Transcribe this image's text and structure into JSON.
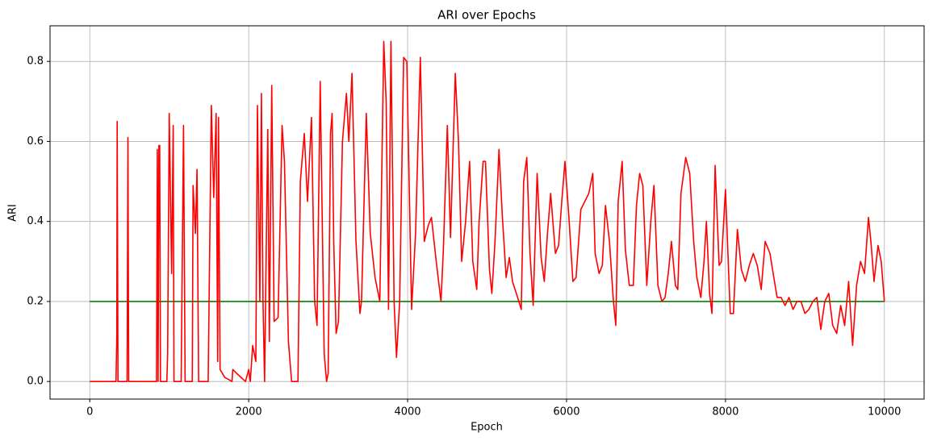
{
  "chart_data": {
    "type": "line",
    "title": "ARI over Epochs",
    "xlabel": "Epoch",
    "ylabel": "ARI",
    "xlim": [
      -500,
      10500
    ],
    "ylim": [
      -0.044,
      0.889
    ],
    "xticks": [
      0,
      2000,
      4000,
      6000,
      8000,
      10000
    ],
    "yticks": [
      {
        "value": 0,
        "label": "0.0"
      },
      0.2,
      0.4,
      0.6,
      0.8
    ],
    "grid": true,
    "series": [
      {
        "color": "#008000",
        "x": [
          0,
          10000
        ],
        "values": [
          0.2,
          0.2
        ]
      },
      {
        "color": "#ff0000",
        "x": [
          0,
          330,
          340,
          345,
          355,
          470,
          480,
          490,
          840,
          850,
          860,
          870,
          880,
          890,
          970,
          980,
          1000,
          1030,
          1050,
          1060,
          1150,
          1180,
          1200,
          1290,
          1300,
          1330,
          1350,
          1370,
          1490,
          1530,
          1560,
          1590,
          1610,
          1620,
          1640,
          1700,
          1790,
          1800,
          1850,
          1960,
          2000,
          2020,
          2050,
          2090,
          2110,
          2140,
          2160,
          2180,
          2200,
          2240,
          2260,
          2290,
          2320,
          2370,
          2420,
          2450,
          2500,
          2540,
          2620,
          2650,
          2700,
          2740,
          2790,
          2830,
          2860,
          2900,
          2950,
          2980,
          3000,
          3030,
          3050,
          3070,
          3100,
          3130,
          3180,
          3230,
          3260,
          3300,
          3350,
          3400,
          3420,
          3480,
          3530,
          3590,
          3650,
          3700,
          3730,
          3760,
          3790,
          3830,
          3860,
          3900,
          3950,
          3990,
          4050,
          4100,
          4160,
          4210,
          4260,
          4300,
          4360,
          4420,
          4450,
          4500,
          4540,
          4600,
          4640,
          4680,
          4730,
          4780,
          4820,
          4870,
          4900,
          4950,
          4980,
          5030,
          5060,
          5100,
          5150,
          5190,
          5240,
          5280,
          5320,
          5400,
          5430,
          5460,
          5500,
          5540,
          5580,
          5630,
          5680,
          5720,
          5760,
          5800,
          5860,
          5900,
          5940,
          5980,
          6030,
          6080,
          6120,
          6180,
          6230,
          6280,
          6330,
          6360,
          6410,
          6450,
          6490,
          6540,
          6590,
          6620,
          6650,
          6700,
          6740,
          6790,
          6840,
          6880,
          6920,
          6960,
          7010,
          7060,
          7100,
          7150,
          7200,
          7240,
          7280,
          7320,
          7370,
          7400,
          7440,
          7500,
          7550,
          7600,
          7640,
          7690,
          7730,
          7760,
          7800,
          7830,
          7870,
          7920,
          7950,
          8000,
          8060,
          8100,
          8150,
          8200,
          8250,
          8300,
          8350,
          8400,
          8450,
          8500,
          8560,
          8600,
          8650,
          8700,
          8750,
          8800,
          8850,
          8900,
          8950,
          9000,
          9050,
          9100,
          9150,
          9200,
          9250,
          9300,
          9350,
          9400,
          9450,
          9500,
          9550,
          9600,
          9650,
          9700,
          9750,
          9800,
          9830,
          9870,
          9920,
          9960,
          10000
        ],
        "values": [
          0,
          0,
          0.11,
          0.65,
          0,
          0,
          0.61,
          0,
          0,
          0.58,
          0,
          0.59,
          0.59,
          0,
          0,
          0.07,
          0.67,
          0.27,
          0.64,
          0,
          0,
          0.64,
          0,
          0,
          0.49,
          0.37,
          0.53,
          0,
          0,
          0.69,
          0.46,
          0.67,
          0.05,
          0.66,
          0.03,
          0.01,
          0,
          0.03,
          0.02,
          0,
          0.03,
          0,
          0.09,
          0.05,
          0.69,
          0.2,
          0.72,
          0.2,
          0,
          0.63,
          0.1,
          0.74,
          0.15,
          0.16,
          0.64,
          0.55,
          0.1,
          0,
          0,
          0.5,
          0.62,
          0.45,
          0.66,
          0.2,
          0.14,
          0.75,
          0.07,
          0,
          0.02,
          0.62,
          0.67,
          0.35,
          0.12,
          0.15,
          0.6,
          0.72,
          0.6,
          0.77,
          0.35,
          0.17,
          0.2,
          0.67,
          0.37,
          0.26,
          0.2,
          0.85,
          0.7,
          0.18,
          0.85,
          0.2,
          0.06,
          0.2,
          0.81,
          0.8,
          0.18,
          0.37,
          0.81,
          0.35,
          0.39,
          0.41,
          0.3,
          0.2,
          0.33,
          0.64,
          0.36,
          0.77,
          0.6,
          0.3,
          0.4,
          0.55,
          0.3,
          0.23,
          0.4,
          0.55,
          0.55,
          0.28,
          0.22,
          0.35,
          0.58,
          0.42,
          0.26,
          0.31,
          0.25,
          0.2,
          0.18,
          0.5,
          0.56,
          0.32,
          0.19,
          0.52,
          0.31,
          0.25,
          0.37,
          0.47,
          0.32,
          0.34,
          0.45,
          0.55,
          0.41,
          0.25,
          0.26,
          0.43,
          0.45,
          0.47,
          0.52,
          0.32,
          0.27,
          0.29,
          0.44,
          0.35,
          0.2,
          0.14,
          0.45,
          0.55,
          0.33,
          0.24,
          0.24,
          0.44,
          0.52,
          0.49,
          0.24,
          0.4,
          0.49,
          0.24,
          0.2,
          0.21,
          0.27,
          0.35,
          0.24,
          0.23,
          0.47,
          0.56,
          0.52,
          0.35,
          0.26,
          0.21,
          0.3,
          0.4,
          0.22,
          0.17,
          0.54,
          0.29,
          0.3,
          0.48,
          0.17,
          0.17,
          0.38,
          0.28,
          0.25,
          0.29,
          0.32,
          0.29,
          0.23,
          0.35,
          0.32,
          0.27,
          0.21,
          0.21,
          0.19,
          0.21,
          0.18,
          0.2,
          0.2,
          0.17,
          0.18,
          0.2,
          0.21,
          0.13,
          0.2,
          0.22,
          0.14,
          0.12,
          0.19,
          0.14,
          0.25,
          0.09,
          0.24,
          0.3,
          0.27,
          0.41,
          0.35,
          0.25,
          0.34,
          0.3,
          0.2
        ]
      }
    ]
  }
}
